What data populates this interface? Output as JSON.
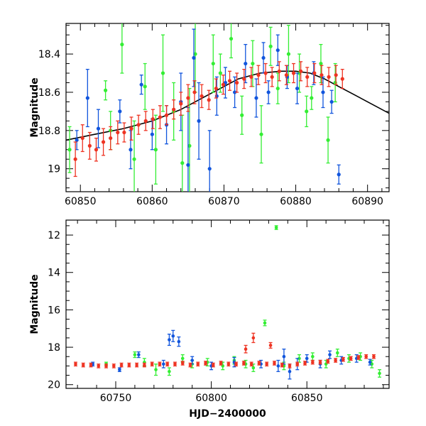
{
  "colors": {
    "green": "#33ee33",
    "blue": "#1155dd",
    "red": "#ee3322",
    "model": "#000000"
  },
  "chart_data": [
    {
      "type": "scatter",
      "title": "",
      "xlabel": "",
      "ylabel": "Magnitude",
      "xlim": [
        60848,
        60893
      ],
      "ylim": [
        19.12,
        18.24
      ],
      "y_inverted": true,
      "x_ticks": [
        60850,
        60860,
        60870,
        60880,
        60890
      ],
      "y_ticks": [
        18.4,
        18.6,
        18.8,
        19
      ],
      "x_tick_labels": [
        "60850",
        "60860",
        "60870",
        "60880",
        "60890"
      ],
      "y_tick_labels": [
        "18.4",
        "18.6",
        "18.8",
        "19"
      ],
      "model_curve": {
        "x": [
          60848,
          60852,
          60856,
          60860,
          60864,
          60868,
          60872,
          60875,
          60878,
          60880,
          60882,
          60884,
          60886,
          60888,
          60890,
          60893
        ],
        "y": [
          18.85,
          18.82,
          18.79,
          18.75,
          18.69,
          18.61,
          18.53,
          18.5,
          18.49,
          18.49,
          18.5,
          18.53,
          18.57,
          18.61,
          18.65,
          18.71
        ]
      },
      "series": [
        {
          "color_key": "green",
          "x": [
            60848.5,
            60853.5,
            60854.2,
            60855.8,
            60857.5,
            60859.0,
            60860.5,
            60861.5,
            60863.0,
            60864.2,
            60865.2,
            60866.0,
            60868.5,
            60869.5,
            60871.0,
            60872.5,
            60874.0,
            60875.2,
            60876.5,
            60877.5,
            60879.0,
            60880.5,
            60881.5,
            60882.2,
            60883.5,
            60884.5,
            60885.5
          ],
          "y": [
            18.9,
            18.59,
            18.8,
            18.35,
            18.95,
            18.57,
            18.9,
            18.5,
            18.7,
            18.97,
            18.88,
            18.4,
            18.45,
            18.5,
            18.32,
            18.72,
            18.45,
            18.82,
            18.36,
            18.58,
            18.4,
            18.5,
            18.7,
            18.63,
            18.45,
            18.85,
            18.55
          ],
          "err": [
            0.12,
            0.05,
            0.1,
            0.15,
            0.2,
            0.12,
            0.18,
            0.2,
            0.15,
            0.25,
            0.3,
            0.2,
            0.15,
            0.1,
            0.1,
            0.1,
            0.12,
            0.15,
            0.1,
            0.08,
            0.15,
            0.1,
            0.08,
            0.06,
            0.1,
            0.12,
            0.1
          ]
        },
        {
          "color_key": "blue",
          "x": [
            60849.5,
            60851.0,
            60852.5,
            60855.5,
            60857.0,
            60858.5,
            60860.0,
            60862.0,
            60864.0,
            60865.0,
            60865.8,
            60866.5,
            60868.0,
            60869.0,
            60870.2,
            60871.5,
            60873.0,
            60874.5,
            60875.5,
            60876.2,
            60877.5,
            60878.8,
            60880.2,
            60882.5,
            60883.8,
            60885.0,
            60886.0
          ],
          "y": [
            18.85,
            18.63,
            18.79,
            18.7,
            18.9,
            18.56,
            18.82,
            18.77,
            18.65,
            18.98,
            18.42,
            18.75,
            19.0,
            18.62,
            18.55,
            18.6,
            18.45,
            18.63,
            18.42,
            18.6,
            18.38,
            18.52,
            18.58,
            18.5,
            18.6,
            18.65,
            19.03
          ],
          "err": [
            0.05,
            0.15,
            0.1,
            0.06,
            0.1,
            0.05,
            0.08,
            0.1,
            0.15,
            0.3,
            0.15,
            0.2,
            0.2,
            0.1,
            0.08,
            0.08,
            0.1,
            0.1,
            0.08,
            0.06,
            0.08,
            0.06,
            0.08,
            0.06,
            0.08,
            0.06,
            0.05
          ]
        },
        {
          "color_key": "red",
          "x": [
            60849.3,
            60850.3,
            60851.3,
            60852.2,
            60853.2,
            60854.2,
            60855.2,
            60856.1,
            60857.1,
            60858.1,
            60859.1,
            60860.1,
            60861.1,
            60862.0,
            60863.0,
            60864.0,
            60865.0,
            60865.9,
            60866.9,
            60867.9,
            60868.9,
            60869.9,
            60870.8,
            60871.8,
            60872.8,
            60873.8,
            60874.8,
            60875.8,
            60876.7,
            60877.7,
            60878.7,
            60879.7,
            60880.7,
            60881.6,
            60882.6,
            60883.6,
            60884.6,
            60885.6,
            60886.5
          ],
          "y": [
            18.95,
            18.84,
            18.88,
            18.9,
            18.86,
            18.84,
            18.81,
            18.81,
            18.79,
            18.77,
            18.75,
            18.74,
            18.73,
            18.72,
            18.69,
            18.66,
            18.63,
            18.6,
            18.62,
            18.64,
            18.58,
            18.56,
            18.54,
            18.55,
            18.53,
            18.52,
            18.51,
            18.5,
            18.52,
            18.49,
            18.51,
            18.5,
            18.49,
            18.52,
            18.5,
            18.51,
            18.52,
            18.51,
            18.53
          ],
          "err": [
            0.09,
            0.07,
            0.07,
            0.06,
            0.07,
            0.06,
            0.06,
            0.05,
            0.06,
            0.05,
            0.05,
            0.05,
            0.06,
            0.05,
            0.05,
            0.06,
            0.07,
            0.06,
            0.06,
            0.05,
            0.05,
            0.05,
            0.05,
            0.05,
            0.05,
            0.05,
            0.05,
            0.05,
            0.05,
            0.05,
            0.05,
            0.05,
            0.05,
            0.05,
            0.05,
            0.05,
            0.05,
            0.05,
            0.05
          ]
        }
      ]
    },
    {
      "type": "scatter",
      "title": "",
      "xlabel": "HJD−2400000",
      "ylabel": "Magnitude",
      "xlim": [
        60724,
        60893
      ],
      "ylim": [
        20.2,
        11.2
      ],
      "y_inverted": true,
      "x_ticks": [
        60750,
        60800,
        60850
      ],
      "y_ticks": [
        12,
        14,
        16,
        18,
        20
      ],
      "x_tick_labels": [
        "60750",
        "60800",
        "60850"
      ],
      "y_tick_labels": [
        "12",
        "14",
        "16",
        "18",
        "20"
      ],
      "series": [
        {
          "color_key": "green",
          "x": [
            60745.0,
            60760.0,
            60765.0,
            60771.0,
            60778.0,
            60785.0,
            60790.0,
            60798.0,
            60806.0,
            60812.0,
            60818.0,
            60822.0,
            60828.0,
            60834.0,
            60838.0,
            60846.0,
            60853.0,
            60860.0,
            60866.0,
            60872.0,
            60878.0,
            60884.0,
            60888.0
          ],
          "y": [
            18.9,
            18.4,
            18.8,
            19.2,
            19.3,
            18.6,
            18.9,
            18.8,
            19.0,
            18.7,
            18.9,
            19.1,
            16.7,
            11.6,
            19.0,
            18.6,
            18.5,
            18.9,
            18.3,
            18.6,
            18.5,
            18.9,
            19.4
          ],
          "err": [
            0.1,
            0.15,
            0.2,
            0.3,
            0.2,
            0.2,
            0.2,
            0.2,
            0.2,
            0.2,
            0.2,
            0.2,
            0.15,
            0.1,
            0.2,
            0.2,
            0.2,
            0.2,
            0.2,
            0.2,
            0.2,
            0.2,
            0.2
          ]
        },
        {
          "color_key": "blue",
          "x": [
            60738.0,
            60752.0,
            60762.0,
            60775.0,
            60778.0,
            60780.0,
            60783.0,
            60790.0,
            60800.0,
            60812.0,
            60826.0,
            60835.0,
            60838.0,
            60841.0,
            60845.0,
            60850.0,
            60857.0,
            60862.0,
            60868.0,
            60876.0,
            60883.0
          ],
          "y": [
            18.9,
            19.2,
            18.4,
            18.9,
            17.6,
            17.4,
            17.7,
            18.7,
            19.0,
            18.8,
            18.9,
            19.0,
            18.5,
            19.3,
            18.9,
            18.6,
            18.9,
            18.4,
            18.7,
            18.6,
            18.8
          ],
          "err": [
            0.1,
            0.1,
            0.15,
            0.2,
            0.3,
            0.3,
            0.25,
            0.2,
            0.2,
            0.25,
            0.2,
            0.3,
            0.4,
            0.4,
            0.3,
            0.2,
            0.2,
            0.2,
            0.2,
            0.2,
            0.15
          ]
        },
        {
          "color_key": "red",
          "x": [
            60729.0,
            60733.0,
            60737.0,
            60741.0,
            60745.0,
            60749.0,
            60753.0,
            60757.0,
            60761.0,
            60765.0,
            60769.0,
            60773.0,
            60777.0,
            60781.0,
            60785.0,
            60789.0,
            60793.0,
            60797.0,
            60801.0,
            60805.0,
            60809.0,
            60813.0,
            60817.0,
            60821.0,
            60825.0,
            60829.0,
            60833.0,
            60837.0,
            60841.0,
            60845.0,
            60849.0,
            60853.0,
            60857.0,
            60861.0,
            60865.0,
            60869.0,
            60873.0,
            60877.0,
            60881.0,
            60885.0,
            60822.0,
            60831.0,
            60818.0
          ],
          "y": [
            18.9,
            18.95,
            18.95,
            19.0,
            19.0,
            19.0,
            18.95,
            18.95,
            18.95,
            18.95,
            18.9,
            18.9,
            18.9,
            18.9,
            18.85,
            18.95,
            18.9,
            18.85,
            18.95,
            18.85,
            18.9,
            18.9,
            18.85,
            18.9,
            18.85,
            18.9,
            18.85,
            18.95,
            19.0,
            18.9,
            18.85,
            18.8,
            18.8,
            18.75,
            18.7,
            18.65,
            18.6,
            18.55,
            18.5,
            18.5,
            17.5,
            17.9,
            18.1
          ],
          "err": [
            0.1,
            0.1,
            0.1,
            0.1,
            0.1,
            0.1,
            0.1,
            0.1,
            0.1,
            0.1,
            0.1,
            0.1,
            0.1,
            0.1,
            0.1,
            0.1,
            0.1,
            0.1,
            0.1,
            0.1,
            0.1,
            0.1,
            0.1,
            0.1,
            0.1,
            0.1,
            0.1,
            0.1,
            0.1,
            0.1,
            0.1,
            0.1,
            0.1,
            0.1,
            0.1,
            0.1,
            0.1,
            0.1,
            0.1,
            0.1,
            0.25,
            0.15,
            0.2
          ]
        }
      ]
    }
  ]
}
